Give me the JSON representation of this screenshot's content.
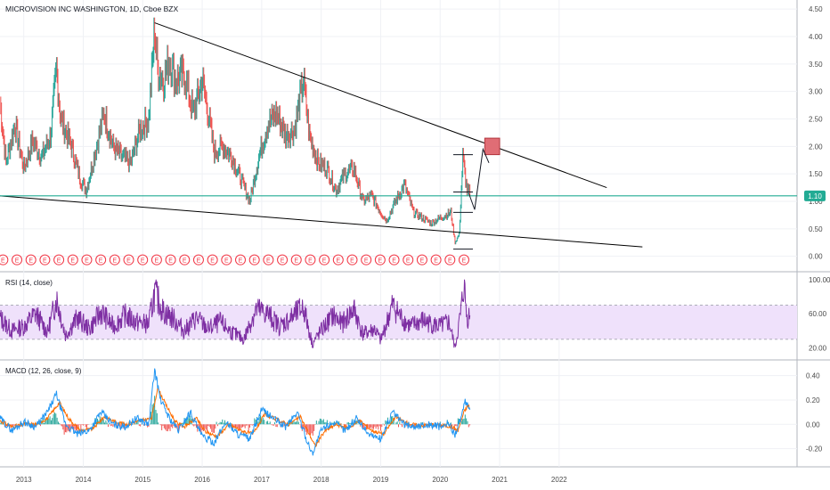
{
  "chart_data": {
    "type": "candlestick-with-indicators",
    "title": "MICROVISION INC WASHINGTON, 1D, Cboe BZX",
    "price_panel": {
      "y_ticks": [
        "4.50",
        "4.00",
        "3.50",
        "3.00",
        "2.50",
        "2.00",
        "1.50",
        "1.00",
        "0.50",
        "0.00"
      ],
      "ylim": [
        -0.2,
        4.6
      ],
      "last_price": "1.10",
      "last_price_value": 1.1,
      "earnings_marker": "E",
      "earnings_markers_count": 34,
      "series_path": [
        [
          2012.6,
          2.8
        ],
        [
          2012.7,
          1.7
        ],
        [
          2012.85,
          2.4
        ],
        [
          2013.0,
          1.6
        ],
        [
          2013.15,
          2.1
        ],
        [
          2013.3,
          1.8
        ],
        [
          2013.45,
          2.2
        ],
        [
          2013.55,
          3.4
        ],
        [
          2013.62,
          2.5
        ],
        [
          2013.8,
          2.0
        ],
        [
          2013.95,
          1.4
        ],
        [
          2014.05,
          1.2
        ],
        [
          2014.2,
          1.9
        ],
        [
          2014.35,
          2.6
        ],
        [
          2014.5,
          2.0
        ],
        [
          2014.65,
          1.8
        ],
        [
          2014.8,
          1.7
        ],
        [
          2014.95,
          2.3
        ],
        [
          2015.1,
          2.5
        ],
        [
          2015.2,
          4.15
        ],
        [
          2015.25,
          3.4
        ],
        [
          2015.35,
          3.2
        ],
        [
          2015.45,
          3.6
        ],
        [
          2015.55,
          3.2
        ],
        [
          2015.7,
          3.3
        ],
        [
          2015.85,
          2.6
        ],
        [
          2016.0,
          3.2
        ],
        [
          2016.1,
          2.6
        ],
        [
          2016.2,
          1.9
        ],
        [
          2016.35,
          2.0
        ],
        [
          2016.5,
          1.8
        ],
        [
          2016.65,
          1.4
        ],
        [
          2016.8,
          1.0
        ],
        [
          2016.95,
          1.8
        ],
        [
          2017.1,
          2.4
        ],
        [
          2017.25,
          2.6
        ],
        [
          2017.4,
          2.2
        ],
        [
          2017.55,
          2.3
        ],
        [
          2017.7,
          3.2
        ],
        [
          2017.8,
          2.2
        ],
        [
          2017.95,
          1.7
        ],
        [
          2018.1,
          1.6
        ],
        [
          2018.25,
          1.2
        ],
        [
          2018.4,
          1.5
        ],
        [
          2018.55,
          1.6
        ],
        [
          2018.7,
          1.0
        ],
        [
          2018.85,
          1.1
        ],
        [
          2019.0,
          0.8
        ],
        [
          2019.1,
          0.65
        ],
        [
          2019.25,
          1.0
        ],
        [
          2019.4,
          1.3
        ],
        [
          2019.55,
          0.8
        ],
        [
          2019.7,
          0.7
        ],
        [
          2019.85,
          0.6
        ],
        [
          2020.0,
          0.7
        ],
        [
          2020.1,
          0.75
        ],
        [
          2020.18,
          0.8
        ],
        [
          2020.25,
          0.25
        ],
        [
          2020.32,
          0.4
        ],
        [
          2020.38,
          1.8
        ],
        [
          2020.45,
          1.2
        ],
        [
          2020.5,
          1.15
        ]
      ],
      "projection": [
        [
          2020.48,
          1.15
        ],
        [
          2020.58,
          0.85
        ],
        [
          2020.72,
          1.95
        ],
        [
          2020.82,
          1.7
        ]
      ],
      "trendlines": [
        {
          "from": [
            2015.2,
            4.25
          ],
          "to": [
            2022.8,
            1.25
          ]
        },
        {
          "from": [
            2012.6,
            1.1
          ],
          "to": [
            2023.4,
            0.17
          ]
        }
      ],
      "horizontal_line": 1.1,
      "target_box": {
        "x0": 2020.75,
        "x1": 2021.0,
        "y0": 1.85,
        "y1": 2.15
      },
      "range_levels": [
        1.85,
        1.17,
        0.8,
        0.13
      ]
    },
    "rsi_panel": {
      "label": "RSI (14, close)",
      "y_ticks": [
        "100.00",
        "60.00",
        "20.00"
      ],
      "band": [
        30,
        70
      ],
      "ylim": [
        10,
        105
      ],
      "series": [
        [
          2012.6,
          55
        ],
        [
          2012.8,
          40
        ],
        [
          2013.0,
          45
        ],
        [
          2013.2,
          60
        ],
        [
          2013.4,
          38
        ],
        [
          2013.55,
          78
        ],
        [
          2013.7,
          35
        ],
        [
          2013.9,
          55
        ],
        [
          2014.1,
          42
        ],
        [
          2014.3,
          62
        ],
        [
          2014.5,
          45
        ],
        [
          2014.7,
          58
        ],
        [
          2014.9,
          50
        ],
        [
          2015.1,
          48
        ],
        [
          2015.2,
          85
        ],
        [
          2015.35,
          62
        ],
        [
          2015.5,
          55
        ],
        [
          2015.7,
          40
        ],
        [
          2015.9,
          55
        ],
        [
          2016.1,
          42
        ],
        [
          2016.3,
          50
        ],
        [
          2016.5,
          38
        ],
        [
          2016.7,
          30
        ],
        [
          2016.9,
          65
        ],
        [
          2017.1,
          60
        ],
        [
          2017.3,
          45
        ],
        [
          2017.5,
          55
        ],
        [
          2017.7,
          68
        ],
        [
          2017.85,
          25
        ],
        [
          2018.0,
          40
        ],
        [
          2018.2,
          58
        ],
        [
          2018.35,
          48
        ],
        [
          2018.55,
          65
        ],
        [
          2018.7,
          36
        ],
        [
          2018.9,
          42
        ],
        [
          2019.0,
          28
        ],
        [
          2019.2,
          70
        ],
        [
          2019.35,
          55
        ],
        [
          2019.5,
          45
        ],
        [
          2019.7,
          52
        ],
        [
          2019.85,
          48
        ],
        [
          2020.0,
          45
        ],
        [
          2020.15,
          50
        ],
        [
          2020.25,
          20
        ],
        [
          2020.35,
          62
        ],
        [
          2020.4,
          95
        ],
        [
          2020.45,
          55
        ],
        [
          2020.5,
          58
        ]
      ]
    },
    "macd_panel": {
      "label": "MACD (12, 26, close, 9)",
      "y_ticks": [
        "0.40",
        "0.20",
        "0.00",
        "-0.20"
      ],
      "ylim": [
        -0.32,
        0.5
      ],
      "macd": [
        [
          2012.6,
          0.05
        ],
        [
          2012.8,
          -0.05
        ],
        [
          2013.0,
          0.02
        ],
        [
          2013.2,
          -0.02
        ],
        [
          2013.4,
          0.1
        ],
        [
          2013.55,
          0.25
        ],
        [
          2013.7,
          0.0
        ],
        [
          2013.9,
          -0.08
        ],
        [
          2014.1,
          -0.05
        ],
        [
          2014.3,
          0.1
        ],
        [
          2014.5,
          0.0
        ],
        [
          2014.7,
          -0.02
        ],
        [
          2014.9,
          0.05
        ],
        [
          2015.1,
          0.0
        ],
        [
          2015.2,
          0.45
        ],
        [
          2015.3,
          0.2
        ],
        [
          2015.45,
          0.05
        ],
        [
          2015.6,
          -0.05
        ],
        [
          2015.8,
          0.1
        ],
        [
          2016.0,
          -0.1
        ],
        [
          2016.2,
          -0.15
        ],
        [
          2016.4,
          0.02
        ],
        [
          2016.6,
          -0.08
        ],
        [
          2016.8,
          -0.12
        ],
        [
          2017.0,
          0.12
        ],
        [
          2017.2,
          0.05
        ],
        [
          2017.4,
          -0.02
        ],
        [
          2017.6,
          0.1
        ],
        [
          2017.75,
          -0.12
        ],
        [
          2017.85,
          -0.24
        ],
        [
          2018.0,
          -0.05
        ],
        [
          2018.2,
          0.02
        ],
        [
          2018.4,
          -0.05
        ],
        [
          2018.6,
          0.05
        ],
        [
          2018.8,
          -0.08
        ],
        [
          2019.0,
          -0.12
        ],
        [
          2019.2,
          0.1
        ],
        [
          2019.4,
          0.0
        ],
        [
          2019.6,
          -0.02
        ],
        [
          2019.8,
          0.0
        ],
        [
          2020.0,
          -0.02
        ],
        [
          2020.15,
          0.0
        ],
        [
          2020.25,
          -0.08
        ],
        [
          2020.35,
          0.05
        ],
        [
          2020.42,
          0.18
        ],
        [
          2020.5,
          0.12
        ]
      ],
      "signal": [
        [
          2012.6,
          0.03
        ],
        [
          2012.8,
          -0.02
        ],
        [
          2013.0,
          0.0
        ],
        [
          2013.2,
          0.0
        ],
        [
          2013.4,
          0.05
        ],
        [
          2013.6,
          0.18
        ],
        [
          2013.75,
          0.05
        ],
        [
          2013.95,
          -0.05
        ],
        [
          2014.15,
          -0.04
        ],
        [
          2014.35,
          0.06
        ],
        [
          2014.55,
          0.02
        ],
        [
          2014.75,
          0.0
        ],
        [
          2014.95,
          0.03
        ],
        [
          2015.15,
          0.05
        ],
        [
          2015.25,
          0.3
        ],
        [
          2015.4,
          0.15
        ],
        [
          2015.55,
          0.02
        ],
        [
          2015.7,
          -0.02
        ],
        [
          2015.9,
          0.05
        ],
        [
          2016.05,
          -0.06
        ],
        [
          2016.25,
          -0.1
        ],
        [
          2016.45,
          0.0
        ],
        [
          2016.65,
          -0.05
        ],
        [
          2016.85,
          -0.08
        ],
        [
          2017.05,
          0.08
        ],
        [
          2017.25,
          0.04
        ],
        [
          2017.45,
          0.0
        ],
        [
          2017.65,
          0.06
        ],
        [
          2017.8,
          -0.08
        ],
        [
          2017.9,
          -0.18
        ],
        [
          2018.05,
          -0.06
        ],
        [
          2018.25,
          0.0
        ],
        [
          2018.45,
          -0.03
        ],
        [
          2018.65,
          0.03
        ],
        [
          2018.85,
          -0.05
        ],
        [
          2019.05,
          -0.08
        ],
        [
          2019.25,
          0.06
        ],
        [
          2019.45,
          0.01
        ],
        [
          2019.65,
          -0.01
        ],
        [
          2019.85,
          0.0
        ],
        [
          2020.05,
          -0.01
        ],
        [
          2020.2,
          -0.02
        ],
        [
          2020.3,
          -0.05
        ],
        [
          2020.4,
          0.1
        ],
        [
          2020.47,
          0.16
        ],
        [
          2020.5,
          0.13
        ]
      ]
    },
    "x_axis": {
      "labels": [
        "2013",
        "2014",
        "2015",
        "2016",
        "2017",
        "2018",
        "2019",
        "2020",
        "2021",
        "2022"
      ],
      "xlim": [
        2012.6,
        2026.0
      ]
    },
    "colors": {
      "up": "#26a69a",
      "down": "#ef5350",
      "trendline": "#000000",
      "last_price_line": "#22ab94",
      "last_price_label_bg": "#22ab94",
      "rsi_line": "#7e2fa3",
      "rsi_band": "#efe1fb",
      "macd_line": "#2196f3",
      "signal_line": "#ff6d00",
      "target_box_fill": "#e06d75",
      "target_box_stroke": "#b2363e",
      "earnings_badge": "#f23645",
      "grid": "#eff1f5",
      "divider": "#b2b5be"
    }
  }
}
